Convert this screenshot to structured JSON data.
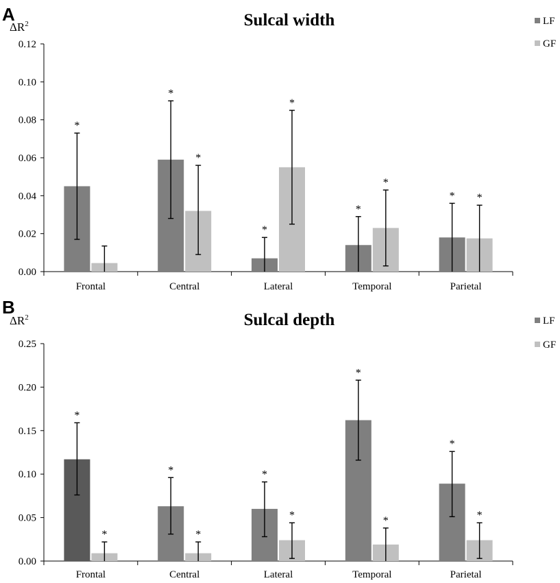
{
  "chart_data": [
    {
      "type": "bar",
      "panel": "A",
      "title": "Sulcal width",
      "ylabel": "ΔR",
      "ylabel_superscript": "2",
      "xlabel": "",
      "ylim": [
        0,
        0.12
      ],
      "yticks": [
        "0.00",
        "0.02",
        "0.04",
        "0.06",
        "0.08",
        "0.10",
        "0.12"
      ],
      "categories": [
        "Frontal",
        "Central",
        "Lateral",
        "Temporal",
        "Parietal"
      ],
      "legend_position": "top-right",
      "series": [
        {
          "name": "LF",
          "color": "#7f7f7f",
          "values": [
            0.045,
            0.059,
            0.007,
            0.014,
            0.018
          ],
          "err_low": [
            0.017,
            0.028,
            0.0,
            0.0,
            0.0
          ],
          "err_high": [
            0.073,
            0.09,
            0.018,
            0.029,
            0.036
          ],
          "significance": [
            "*",
            "*",
            "*",
            "*",
            "*"
          ]
        },
        {
          "name": "GF",
          "color": "#c0c0c0",
          "values": [
            0.0045,
            0.032,
            0.055,
            0.023,
            0.0175
          ],
          "err_low": [
            0.0,
            0.009,
            0.025,
            0.003,
            0.0
          ],
          "err_high": [
            0.0135,
            0.056,
            0.085,
            0.043,
            0.035
          ],
          "significance": [
            "",
            "*",
            "*",
            "*",
            "*"
          ]
        }
      ]
    },
    {
      "type": "bar",
      "panel": "B",
      "title": "Sulcal depth",
      "ylabel": "ΔR",
      "ylabel_superscript": "2",
      "xlabel": "",
      "ylim": [
        0,
        0.25
      ],
      "yticks": [
        "0.00",
        "0.05",
        "0.10",
        "0.15",
        "0.20",
        "0.25"
      ],
      "categories": [
        "Frontal",
        "Central",
        "Lateral",
        "Temporal",
        "Parietal"
      ],
      "legend_position": "top-right",
      "series": [
        {
          "name": "LF",
          "color": "#7f7f7f",
          "values": [
            0.117,
            0.063,
            0.06,
            0.162,
            0.089
          ],
          "colors": [
            "#595959",
            "#7f7f7f",
            "#7f7f7f",
            "#7f7f7f",
            "#7f7f7f"
          ],
          "err_low": [
            0.076,
            0.031,
            0.028,
            0.116,
            0.051
          ],
          "err_high": [
            0.159,
            0.096,
            0.091,
            0.208,
            0.126
          ],
          "significance": [
            "*",
            "*",
            "*",
            "*",
            "*"
          ]
        },
        {
          "name": "GF",
          "color": "#c0c0c0",
          "values": [
            0.009,
            0.009,
            0.024,
            0.019,
            0.024
          ],
          "err_low": [
            0.0,
            0.0,
            0.003,
            0.0,
            0.003
          ],
          "err_high": [
            0.022,
            0.022,
            0.044,
            0.038,
            0.044
          ],
          "significance": [
            "*",
            "*",
            "*",
            "*",
            "*"
          ]
        }
      ]
    }
  ]
}
